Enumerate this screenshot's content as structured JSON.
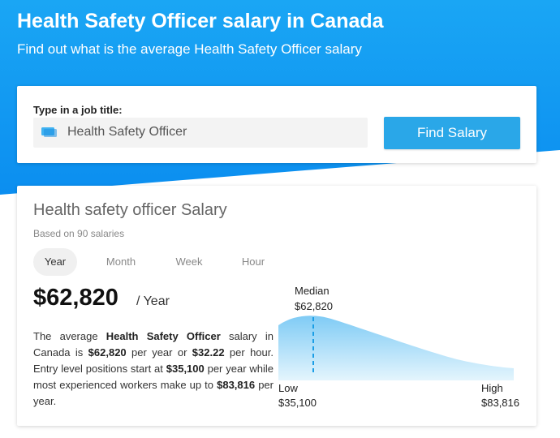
{
  "header": {
    "title": "Health Safety Officer salary in Canada",
    "subtitle": "Find out what is the average Health Safety Officer salary"
  },
  "search": {
    "label": "Type in a job title:",
    "value": "Health Safety Officer",
    "icon": "job-title-icon",
    "button_label": "Find Salary"
  },
  "salary": {
    "title": "Health safety officer Salary",
    "based_on": "Based on 90 salaries",
    "tabs": [
      {
        "label": "Year",
        "active": true
      },
      {
        "label": "Month",
        "active": false
      },
      {
        "label": "Week",
        "active": false
      },
      {
        "label": "Hour",
        "active": false
      }
    ],
    "amount": "$62,820",
    "period": "/ Year",
    "description": {
      "p1": "The average ",
      "job": "Health Safety Officer",
      "p2": " salary in Canada is ",
      "yearly": "$62,820",
      "p3": " per year or ",
      "hourly": "$32.22",
      "p4": " per hour. Entry level positions start at ",
      "entry": "$35,100",
      "p5": " per year while most experienced workers make up to ",
      "max": "$83,816",
      "p6": " per year."
    },
    "distribution": {
      "median_label": "Median",
      "median_value": "$62,820",
      "low_label": "Low",
      "low_value": "$35,100",
      "high_label": "High",
      "high_value": "$83,816",
      "low": 35100,
      "median": 62820,
      "high": 83816
    }
  },
  "colors": {
    "brand_blue": "#0b8ef0",
    "button_blue": "#2aa7e8",
    "curve_blue": "#7fcbf5"
  }
}
